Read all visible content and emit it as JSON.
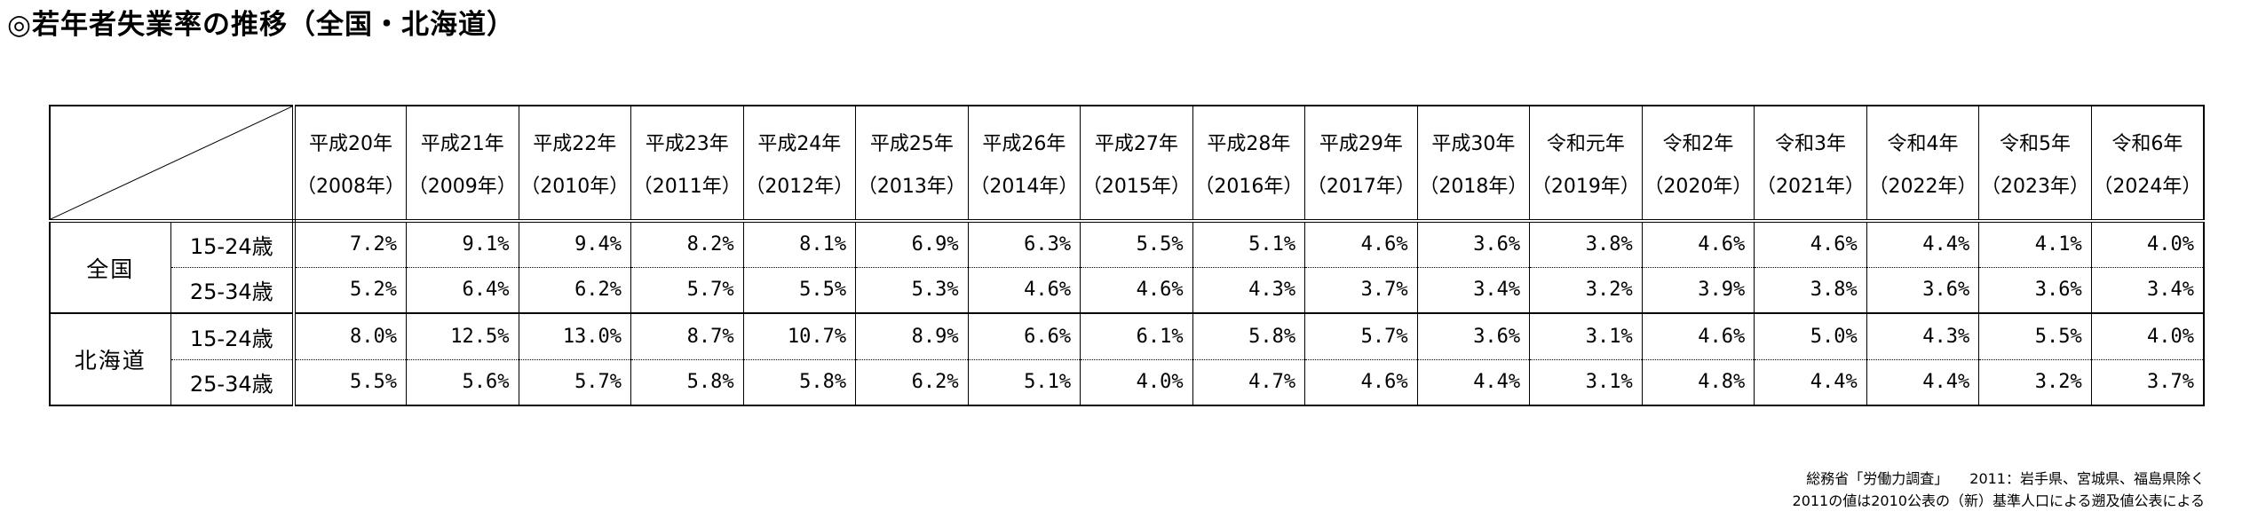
{
  "title": "◎若年者失業率の推移（全国・北海道）",
  "table": {
    "col_headers": [
      {
        "era": "平成20年",
        "year": "（2008年）"
      },
      {
        "era": "平成21年",
        "year": "（2009年）"
      },
      {
        "era": "平成22年",
        "year": "（2010年）"
      },
      {
        "era": "平成23年",
        "year": "（2011年）"
      },
      {
        "era": "平成24年",
        "year": "（2012年）"
      },
      {
        "era": "平成25年",
        "year": "（2013年）"
      },
      {
        "era": "平成26年",
        "year": "（2014年）"
      },
      {
        "era": "平成27年",
        "year": "（2015年）"
      },
      {
        "era": "平成28年",
        "year": "（2016年）"
      },
      {
        "era": "平成29年",
        "year": "（2017年）"
      },
      {
        "era": "平成30年",
        "year": "（2018年）"
      },
      {
        "era": "令和元年",
        "year": "（2019年）"
      },
      {
        "era": "令和2年",
        "year": "（2020年）"
      },
      {
        "era": "令和3年",
        "year": "（2021年）"
      },
      {
        "era": "令和4年",
        "year": "（2022年）"
      },
      {
        "era": "令和5年",
        "year": "（2023年）"
      },
      {
        "era": "令和6年",
        "year": "（2024年）"
      }
    ],
    "row_groups": [
      {
        "region": "全国",
        "rows": [
          {
            "age": "15-24歳",
            "values": [
              "7.2%",
              "9.1%",
              "9.4%",
              "8.2%",
              "8.1%",
              "6.9%",
              "6.3%",
              "5.5%",
              "5.1%",
              "4.6%",
              "3.6%",
              "3.8%",
              "4.6%",
              "4.6%",
              "4.4%",
              "4.1%",
              "4.0%"
            ]
          },
          {
            "age": "25-34歳",
            "values": [
              "5.2%",
              "6.4%",
              "6.2%",
              "5.7%",
              "5.5%",
              "5.3%",
              "4.6%",
              "4.6%",
              "4.3%",
              "3.7%",
              "3.4%",
              "3.2%",
              "3.9%",
              "3.8%",
              "3.6%",
              "3.6%",
              "3.4%"
            ]
          }
        ]
      },
      {
        "region": "北海道",
        "rows": [
          {
            "age": "15-24歳",
            "values": [
              "8.0%",
              "12.5%",
              "13.0%",
              "8.7%",
              "10.7%",
              "8.9%",
              "6.6%",
              "6.1%",
              "5.8%",
              "5.7%",
              "3.6%",
              "3.1%",
              "4.6%",
              "5.0%",
              "4.3%",
              "5.5%",
              "4.0%"
            ]
          },
          {
            "age": "25-34歳",
            "values": [
              "5.5%",
              "5.6%",
              "5.7%",
              "5.8%",
              "5.8%",
              "6.2%",
              "5.1%",
              "4.0%",
              "4.7%",
              "4.6%",
              "4.4%",
              "3.1%",
              "4.8%",
              "4.4%",
              "4.4%",
              "3.2%",
              "3.7%"
            ]
          }
        ]
      }
    ]
  },
  "notes": [
    "総務省「労働力調査」　　2011：岩手県、宮城県、福島県除く",
    "2011の値は2010公表の（新）基準人口による遡及値公表による"
  ],
  "chart_data": {
    "type": "table",
    "title": "若年者失業率の推移（全国・北海道）",
    "unit": "%",
    "x": [
      2008,
      2009,
      2010,
      2011,
      2012,
      2013,
      2014,
      2015,
      2016,
      2017,
      2018,
      2019,
      2020,
      2021,
      2022,
      2023,
      2024
    ],
    "x_labels": [
      "平成20年",
      "平成21年",
      "平成22年",
      "平成23年",
      "平成24年",
      "平成25年",
      "平成26年",
      "平成27年",
      "平成28年",
      "平成29年",
      "平成30年",
      "令和元年",
      "令和2年",
      "令和3年",
      "令和4年",
      "令和5年",
      "令和6年"
    ],
    "series": [
      {
        "name": "全国 15-24歳",
        "values": [
          7.2,
          9.1,
          9.4,
          8.2,
          8.1,
          6.9,
          6.3,
          5.5,
          5.1,
          4.6,
          3.6,
          3.8,
          4.6,
          4.6,
          4.4,
          4.1,
          4.0
        ]
      },
      {
        "name": "全国 25-34歳",
        "values": [
          5.2,
          6.4,
          6.2,
          5.7,
          5.5,
          5.3,
          4.6,
          4.6,
          4.3,
          3.7,
          3.4,
          3.2,
          3.9,
          3.8,
          3.6,
          3.6,
          3.4
        ]
      },
      {
        "name": "北海道 15-24歳",
        "values": [
          8.0,
          12.5,
          13.0,
          8.7,
          10.7,
          8.9,
          6.6,
          6.1,
          5.8,
          5.7,
          3.6,
          3.1,
          4.6,
          5.0,
          4.3,
          5.5,
          4.0
        ]
      },
      {
        "name": "北海道 25-34歳",
        "values": [
          5.5,
          5.6,
          5.7,
          5.8,
          5.8,
          6.2,
          5.1,
          4.0,
          4.7,
          4.6,
          4.4,
          3.1,
          4.8,
          4.4,
          4.4,
          3.2,
          3.7
        ]
      }
    ]
  }
}
